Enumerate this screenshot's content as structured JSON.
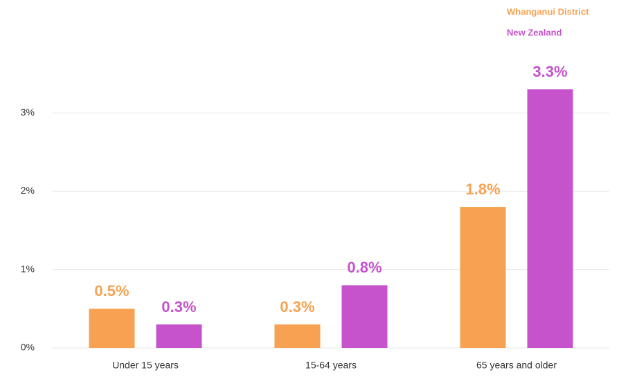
{
  "chart_data": {
    "type": "bar",
    "categories": [
      "Under 15 years",
      "15-64 years",
      "65 years and older"
    ],
    "series": [
      {
        "name": "Whanganui District",
        "color": "#f7a252",
        "values": [
          0.5,
          0.3,
          1.8
        ],
        "value_labels": [
          "0.5%",
          "0.3%",
          "1.8%"
        ]
      },
      {
        "name": "New Zealand",
        "color": "#c653cc",
        "values": [
          0.3,
          0.8,
          3.3
        ],
        "value_labels": [
          "0.3%",
          "0.8%",
          "3.3%"
        ]
      }
    ],
    "ylim": [
      0,
      3.5
    ],
    "yticks": [
      {
        "value": 0,
        "label": "0%"
      },
      {
        "value": 1,
        "label": "1%"
      },
      {
        "value": 2,
        "label": "2%"
      },
      {
        "value": 3,
        "label": "3%"
      }
    ],
    "grid": true,
    "legend": "top-right"
  }
}
